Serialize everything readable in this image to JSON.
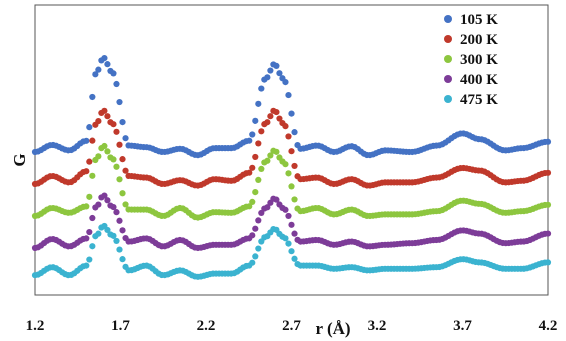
{
  "chart_data": {
    "type": "scatter",
    "xlabel": "r (Å)",
    "ylabel": "G",
    "xlim": [
      1.2,
      4.2
    ],
    "x_ticks": [
      "1.2",
      "1.7",
      "2.2",
      "2.7",
      "3.2",
      "3.7",
      "4.2"
    ],
    "y_ticks_shown": false,
    "grid": false,
    "legend_position": "top-right",
    "series": [
      {
        "name": "105 K",
        "color": "#4472C4",
        "offset": 4,
        "points": [
          [
            1.2,
            0.0
          ],
          [
            1.3,
            0.22
          ],
          [
            1.4,
            0.05
          ],
          [
            1.5,
            0.35
          ],
          [
            1.56,
            2.5
          ],
          [
            1.6,
            2.95
          ],
          [
            1.65,
            2.5
          ],
          [
            1.75,
            0.2
          ],
          [
            1.85,
            0.15
          ],
          [
            1.95,
            0.0
          ],
          [
            2.05,
            0.1
          ],
          [
            2.15,
            -0.1
          ],
          [
            2.25,
            0.12
          ],
          [
            2.35,
            0.12
          ],
          [
            2.45,
            0.35
          ],
          [
            2.55,
            2.3
          ],
          [
            2.6,
            2.75
          ],
          [
            2.65,
            2.3
          ],
          [
            2.75,
            0.1
          ],
          [
            2.85,
            0.2
          ],
          [
            2.95,
            0.0
          ],
          [
            3.05,
            0.18
          ],
          [
            3.15,
            -0.1
          ],
          [
            3.25,
            0.05
          ],
          [
            3.4,
            0.0
          ],
          [
            3.55,
            0.2
          ],
          [
            3.7,
            0.58
          ],
          [
            3.8,
            0.4
          ],
          [
            3.95,
            0.05
          ],
          [
            4.05,
            0.12
          ],
          [
            4.2,
            0.32
          ]
        ]
      },
      {
        "name": "200 K",
        "color": "#C0392B",
        "offset": 3,
        "points": [
          [
            1.2,
            0.0
          ],
          [
            1.3,
            0.25
          ],
          [
            1.4,
            0.05
          ],
          [
            1.5,
            0.4
          ],
          [
            1.56,
            1.9
          ],
          [
            1.6,
            2.3
          ],
          [
            1.65,
            1.9
          ],
          [
            1.75,
            0.25
          ],
          [
            1.85,
            0.2
          ],
          [
            1.95,
            0.0
          ],
          [
            2.05,
            0.12
          ],
          [
            2.15,
            -0.05
          ],
          [
            2.25,
            0.15
          ],
          [
            2.35,
            0.1
          ],
          [
            2.45,
            0.35
          ],
          [
            2.55,
            1.9
          ],
          [
            2.6,
            2.3
          ],
          [
            2.65,
            1.9
          ],
          [
            2.75,
            0.15
          ],
          [
            2.85,
            0.2
          ],
          [
            2.95,
            0.0
          ],
          [
            3.05,
            0.15
          ],
          [
            3.15,
            -0.05
          ],
          [
            3.25,
            0.05
          ],
          [
            3.4,
            0.05
          ],
          [
            3.55,
            0.2
          ],
          [
            3.7,
            0.5
          ],
          [
            3.8,
            0.42
          ],
          [
            3.95,
            0.05
          ],
          [
            4.05,
            0.1
          ],
          [
            4.2,
            0.35
          ]
        ]
      },
      {
        "name": "300 K",
        "color": "#8DC63F",
        "offset": 2,
        "points": [
          [
            1.2,
            0.0
          ],
          [
            1.3,
            0.25
          ],
          [
            1.4,
            0.1
          ],
          [
            1.5,
            0.3
          ],
          [
            1.56,
            1.8
          ],
          [
            1.6,
            2.2
          ],
          [
            1.65,
            1.8
          ],
          [
            1.75,
            0.2
          ],
          [
            1.85,
            0.2
          ],
          [
            1.95,
            0.0
          ],
          [
            2.05,
            0.25
          ],
          [
            2.15,
            -0.05
          ],
          [
            2.25,
            0.12
          ],
          [
            2.35,
            0.1
          ],
          [
            2.45,
            0.3
          ],
          [
            2.55,
            1.7
          ],
          [
            2.6,
            2.05
          ],
          [
            2.65,
            1.7
          ],
          [
            2.75,
            0.15
          ],
          [
            2.85,
            0.25
          ],
          [
            2.95,
            0.05
          ],
          [
            3.05,
            0.2
          ],
          [
            3.15,
            0.0
          ],
          [
            3.25,
            0.05
          ],
          [
            3.4,
            0.05
          ],
          [
            3.55,
            0.15
          ],
          [
            3.7,
            0.48
          ],
          [
            3.8,
            0.38
          ],
          [
            3.95,
            0.1
          ],
          [
            4.05,
            0.15
          ],
          [
            4.2,
            0.35
          ]
        ]
      },
      {
        "name": "400 K",
        "color": "#7D3C98",
        "offset": 1,
        "points": [
          [
            1.2,
            0.0
          ],
          [
            1.3,
            0.28
          ],
          [
            1.4,
            0.05
          ],
          [
            1.5,
            0.3
          ],
          [
            1.56,
            1.3
          ],
          [
            1.6,
            1.65
          ],
          [
            1.65,
            1.3
          ],
          [
            1.75,
            0.2
          ],
          [
            1.85,
            0.3
          ],
          [
            1.95,
            0.05
          ],
          [
            2.05,
            0.25
          ],
          [
            2.15,
            0.0
          ],
          [
            2.25,
            0.1
          ],
          [
            2.35,
            0.1
          ],
          [
            2.45,
            0.3
          ],
          [
            2.55,
            1.25
          ],
          [
            2.6,
            1.55
          ],
          [
            2.65,
            1.25
          ],
          [
            2.75,
            0.2
          ],
          [
            2.85,
            0.25
          ],
          [
            2.95,
            0.1
          ],
          [
            3.05,
            0.2
          ],
          [
            3.15,
            0.05
          ],
          [
            3.25,
            0.1
          ],
          [
            3.4,
            0.15
          ],
          [
            3.55,
            0.25
          ],
          [
            3.7,
            0.55
          ],
          [
            3.8,
            0.45
          ],
          [
            3.95,
            0.15
          ],
          [
            4.05,
            0.2
          ],
          [
            4.2,
            0.45
          ]
        ]
      },
      {
        "name": "475 K",
        "color": "#3BB3D0",
        "offset": 0,
        "points": [
          [
            1.2,
            0.15
          ],
          [
            1.3,
            0.4
          ],
          [
            1.4,
            0.15
          ],
          [
            1.5,
            0.45
          ],
          [
            1.56,
            1.4
          ],
          [
            1.6,
            1.7
          ],
          [
            1.65,
            1.4
          ],
          [
            1.75,
            0.3
          ],
          [
            1.85,
            0.45
          ],
          [
            1.95,
            0.15
          ],
          [
            2.05,
            0.3
          ],
          [
            2.15,
            0.1
          ],
          [
            2.25,
            0.2
          ],
          [
            2.35,
            0.2
          ],
          [
            2.45,
            0.45
          ],
          [
            2.55,
            1.35
          ],
          [
            2.6,
            1.6
          ],
          [
            2.65,
            1.35
          ],
          [
            2.75,
            0.45
          ],
          [
            2.85,
            0.45
          ],
          [
            2.95,
            0.35
          ],
          [
            3.05,
            0.4
          ],
          [
            3.15,
            0.3
          ],
          [
            3.25,
            0.35
          ],
          [
            3.4,
            0.35
          ],
          [
            3.55,
            0.4
          ],
          [
            3.7,
            0.65
          ],
          [
            3.8,
            0.55
          ],
          [
            3.95,
            0.35
          ],
          [
            4.05,
            0.35
          ],
          [
            4.2,
            0.55
          ]
        ]
      }
    ]
  }
}
